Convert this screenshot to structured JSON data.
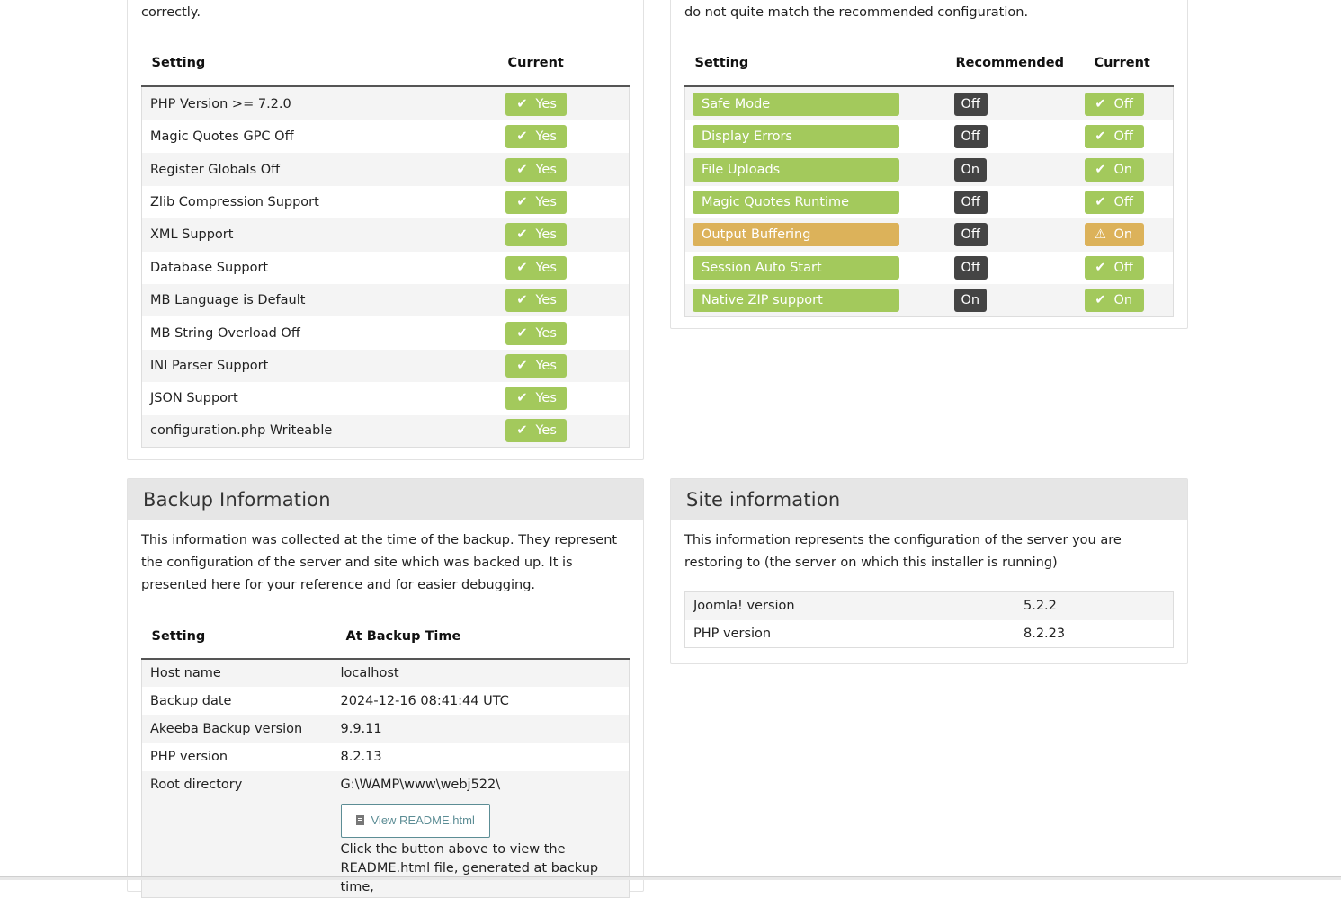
{
  "required": {
    "intro_tail": "correctly.",
    "header_setting": "Setting",
    "header_current": "Current",
    "rows": [
      {
        "label": "PHP Version >= 7.2.0",
        "value": "Yes"
      },
      {
        "label": "Magic Quotes GPC Off",
        "value": "Yes"
      },
      {
        "label": "Register Globals Off",
        "value": "Yes"
      },
      {
        "label": "Zlib Compression Support",
        "value": "Yes"
      },
      {
        "label": "XML Support",
        "value": "Yes"
      },
      {
        "label": "Database Support",
        "value": "Yes"
      },
      {
        "label": "MB Language is Default",
        "value": "Yes"
      },
      {
        "label": "MB String Overload Off",
        "value": "Yes"
      },
      {
        "label": "INI Parser Support",
        "value": "Yes"
      },
      {
        "label": "JSON Support",
        "value": "Yes"
      },
      {
        "label": "configuration.php Writeable",
        "value": "Yes"
      }
    ]
  },
  "recommended": {
    "intro_tail": "do not quite match the recommended configuration.",
    "header_setting": "Setting",
    "header_recommended": "Recommended",
    "header_current": "Current",
    "rows": [
      {
        "label": "Safe Mode",
        "recommended": "Off",
        "current": "Off",
        "status": "ok"
      },
      {
        "label": "Display Errors",
        "recommended": "Off",
        "current": "Off",
        "status": "ok"
      },
      {
        "label": "File Uploads",
        "recommended": "On",
        "current": "On",
        "status": "ok"
      },
      {
        "label": "Magic Quotes Runtime",
        "recommended": "Off",
        "current": "Off",
        "status": "ok"
      },
      {
        "label": "Output Buffering",
        "recommended": "Off",
        "current": "On",
        "status": "warning"
      },
      {
        "label": "Session Auto Start",
        "recommended": "Off",
        "current": "Off",
        "status": "ok"
      },
      {
        "label": "Native ZIP support",
        "recommended": "On",
        "current": "On",
        "status": "ok"
      }
    ],
    "colors": {
      "ok": "#a3c95c",
      "warning": "#dcb25a",
      "dark": "#444444"
    }
  },
  "backup": {
    "title": "Backup Information",
    "intro": "This information was collected at the time of the backup. They represent the configuration of the server and site which was backed up. It is presented here for your reference and for easier debugging.",
    "header_setting": "Setting",
    "header_value": "At Backup Time",
    "rows": [
      {
        "label": "Host name",
        "value": "localhost"
      },
      {
        "label": "Backup date",
        "value": "2024-12-16 08:41:44 UTC"
      },
      {
        "label": "Akeeba Backup version",
        "value": "9.9.11"
      },
      {
        "label": "PHP version",
        "value": "8.2.13"
      },
      {
        "label": "Root directory",
        "value": "G:\\WAMP\\www\\webj522\\"
      }
    ],
    "readme_button": "View README.html",
    "readme_note": "Click the button above to view the README.html file, generated at backup time,"
  },
  "site": {
    "title": "Site information",
    "intro": "This information represents the configuration of the server you are restoring to (the server on which this installer is running)",
    "rows": [
      {
        "label": "Joomla! version",
        "value": "5.2.2"
      },
      {
        "label": "PHP version",
        "value": "8.2.23"
      }
    ]
  }
}
